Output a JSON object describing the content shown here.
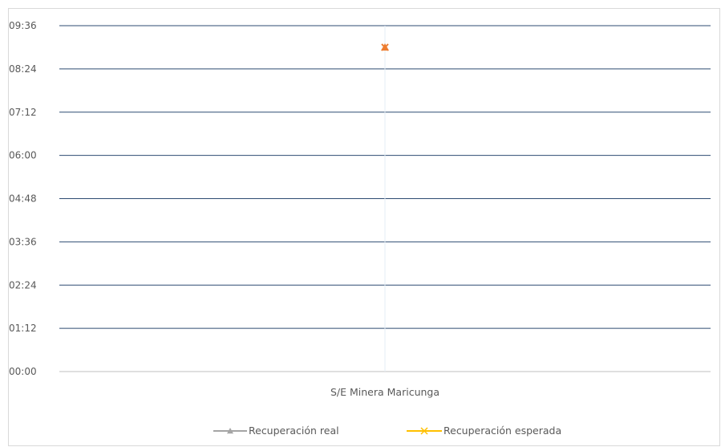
{
  "chart_data": {
    "type": "line",
    "title": "",
    "xlabel": "",
    "ylabel": "",
    "categories": [
      "S/E Minera Maricunga"
    ],
    "y_ticks": [
      "00:00",
      "01:12",
      "02:24",
      "03:36",
      "04:48",
      "06:00",
      "07:12",
      "08:24",
      "09:36"
    ],
    "ylim_minutes": [
      0,
      576
    ],
    "grid": true,
    "legend_position": "bottom",
    "series": [
      {
        "name": "Recuperación real",
        "marker": "triangle",
        "color": "#a5a5a5",
        "values": [
          "09:00"
        ],
        "values_minutes": [
          540
        ]
      },
      {
        "name": "Recuperación esperada",
        "marker": "x",
        "color": "#ffc000",
        "values": [
          "09:00"
        ],
        "values_minutes": [
          540
        ]
      }
    ],
    "overlay_marker_color": "#ed7d31"
  }
}
